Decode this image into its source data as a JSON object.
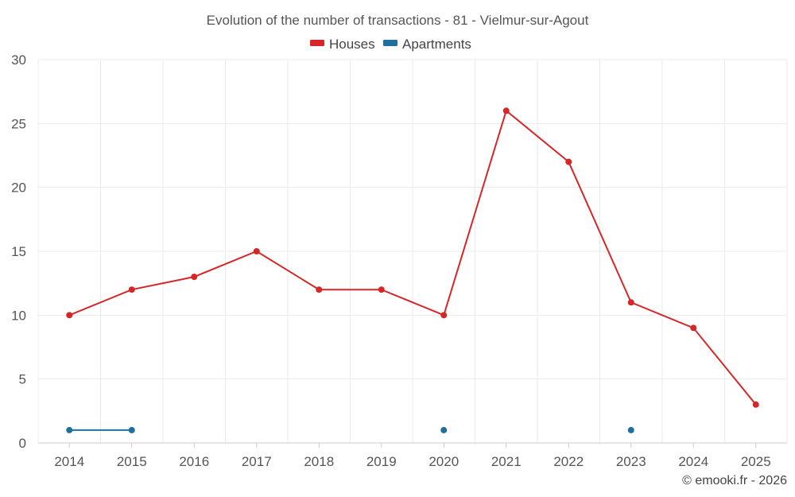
{
  "chart_data": {
    "type": "line",
    "title": "Evolution of the number of transactions - 81 - Vielmur-sur-Agout",
    "x": [
      "2014",
      "2015",
      "2016",
      "2017",
      "2018",
      "2019",
      "2020",
      "2021",
      "2022",
      "2023",
      "2024",
      "2025"
    ],
    "ylim": [
      0,
      30
    ],
    "yticks": [
      0,
      5,
      10,
      15,
      20,
      25,
      30
    ],
    "grid": true,
    "legend_position": "top-center",
    "series": [
      {
        "name": "Houses",
        "color": "#d62728",
        "values": [
          10,
          12,
          13,
          15,
          12,
          12,
          10,
          26,
          22,
          11,
          9,
          3
        ]
      },
      {
        "name": "Apartments",
        "color": "#1f6fa0",
        "values": [
          1,
          1,
          null,
          null,
          null,
          null,
          1,
          null,
          null,
          1,
          null,
          null
        ]
      }
    ]
  },
  "credit": "© emooki.fr - 2026"
}
